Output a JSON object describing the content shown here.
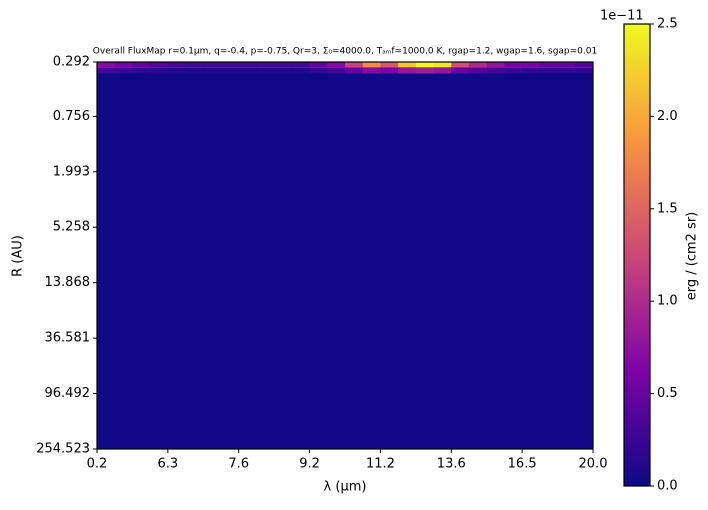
{
  "chart_data": {
    "type": "heatmap",
    "title": "Overall FluxMap r=0.1μm, q=-0.4, p=-0.75, Qr=3, Σ₀=4000.0, Tₐₘf=1000.0 K, rgap=1.2, wgap=1.6, sgap=0.01",
    "x_label": "λ (μm)",
    "y_label": "R (AU)",
    "xtick_labels": [
      "0.2",
      "6.3",
      "7.6",
      "9.2",
      "11.2",
      "13.6",
      "16.5",
      "20.0"
    ],
    "ylim": [
      0.292,
      254.523
    ],
    "y_log": true,
    "yticks": [
      0.292,
      0.756,
      1.993,
      5.258,
      13.868,
      36.581,
      96.492,
      254.523
    ],
    "y_edges": [
      0.292,
      0.32,
      0.357,
      254.523
    ],
    "z": [
      [
        0.7,
        0.6,
        0.5,
        0.4,
        0.35,
        0.3,
        0.3,
        0.3,
        0.3,
        0.3,
        0.3,
        0.3,
        0.5,
        0.7,
        1.2,
        1.8,
        1.4,
        2.2,
        2.5,
        2.4,
        1.3,
        1.0,
        0.8,
        0.6,
        0.6,
        0.5,
        0.5,
        0.4
      ],
      [
        0.3,
        0.25,
        0.2,
        0.15,
        0.1,
        0.1,
        0.1,
        0.1,
        0.1,
        0.1,
        0.1,
        0.1,
        0.2,
        0.3,
        0.5,
        0.7,
        0.6,
        0.8,
        0.9,
        0.8,
        0.5,
        0.4,
        0.3,
        0.25,
        0.2,
        0.2,
        0.2,
        0.2
      ],
      [
        0.02,
        0.02,
        0.02,
        0.02,
        0.02,
        0.02,
        0.02,
        0.02,
        0.02,
        0.02,
        0.02,
        0.02,
        0.02,
        0.02,
        0.02,
        0.02,
        0.02,
        0.02,
        0.02,
        0.02,
        0.02,
        0.02,
        0.02,
        0.02,
        0.02,
        0.02,
        0.02,
        0.02
      ]
    ],
    "colormap": [
      "#0d0887",
      "#7e03a8",
      "#cc4778",
      "#f89540",
      "#f0f921"
    ],
    "clim": [
      0,
      2.5
    ],
    "cticks": [
      {
        "value": 0,
        "label": "0.0"
      },
      {
        "value": 0.5,
        "label": "0.5"
      },
      {
        "value": 1,
        "label": "1.0"
      },
      {
        "value": 1.5,
        "label": "1.5"
      },
      {
        "value": 2,
        "label": "2.0"
      },
      {
        "value": 2.5,
        "label": "2.5"
      }
    ],
    "colorbar_offset": "1e−11",
    "colorbar_label": "erg / (cm2 sr)"
  }
}
